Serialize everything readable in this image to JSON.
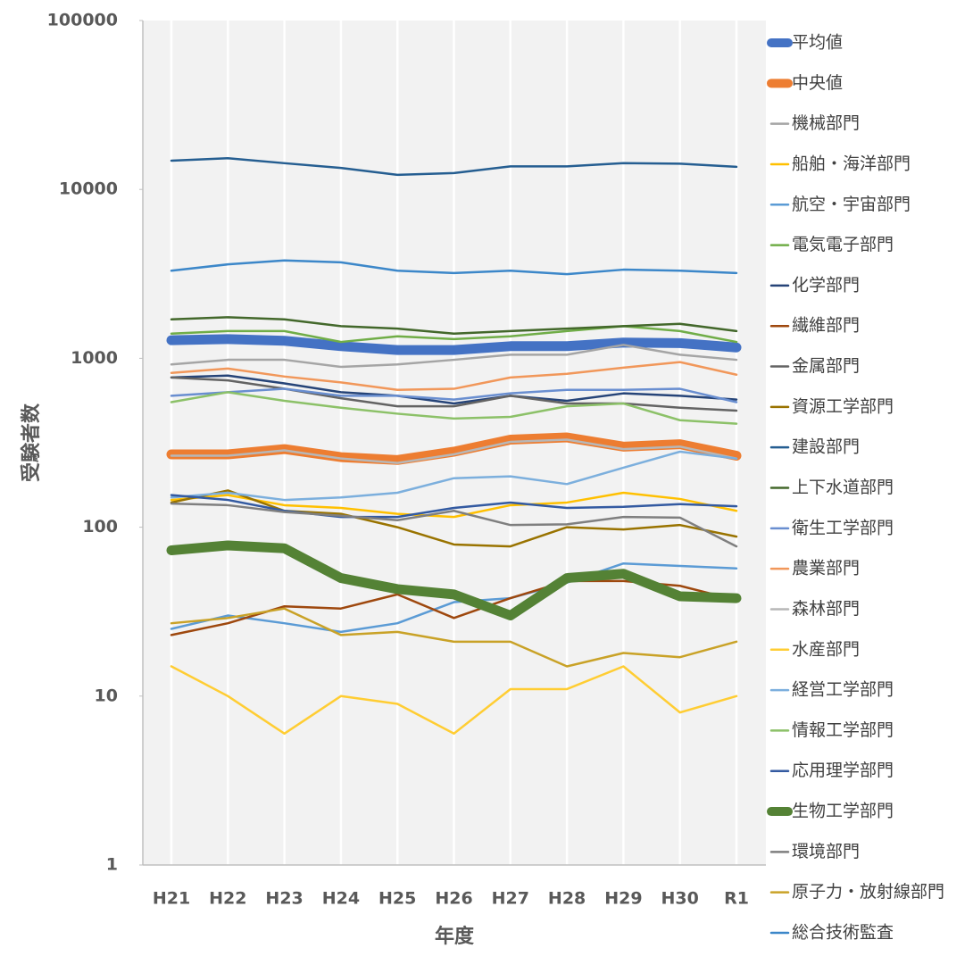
{
  "chart_data": {
    "type": "line",
    "y_label": "受験者数",
    "x_label": "年度",
    "categories": [
      "H21",
      "H22",
      "H23",
      "H24",
      "H25",
      "H26",
      "H27",
      "H28",
      "H29",
      "H30",
      "R1"
    ],
    "ylim": [
      1,
      100000
    ],
    "yticks": [
      1,
      10,
      100,
      1000,
      10000,
      100000
    ],
    "log_scale": true,
    "grid": "x",
    "legend": "right",
    "series": [
      {
        "name": "平均値",
        "color": "#4472c4",
        "line_width": 11,
        "values": [
          1280,
          1300,
          1270,
          1180,
          1120,
          1120,
          1180,
          1180,
          1240,
          1230,
          1160
        ]
      },
      {
        "name": "中央値",
        "color": "#ed7d31",
        "line_width": 11,
        "values": [
          270,
          270,
          290,
          260,
          250,
          280,
          330,
          340,
          300,
          310,
          265
        ]
      },
      {
        "name": "機械部門",
        "color": "#a5a5a5",
        "line_width": 2.5,
        "values": [
          920,
          980,
          980,
          890,
          920,
          980,
          1050,
          1050,
          1200,
          1050,
          980
        ]
      },
      {
        "name": "船舶・海洋部門",
        "color": "#ffc000",
        "line_width": 2.5,
        "values": [
          145,
          155,
          135,
          130,
          120,
          115,
          135,
          140,
          160,
          147,
          125
        ]
      },
      {
        "name": "航空・宇宙部門",
        "color": "#5b9bd5",
        "line_width": 2.5,
        "values": [
          25,
          30,
          27,
          24,
          27,
          36,
          38,
          47,
          61,
          59,
          57
        ]
      },
      {
        "name": "電気電子部門",
        "color": "#70ad47",
        "line_width": 2.5,
        "values": [
          1400,
          1450,
          1450,
          1250,
          1350,
          1300,
          1350,
          1450,
          1550,
          1450,
          1250
        ]
      },
      {
        "name": "化学部門",
        "color": "#264478",
        "line_width": 2.5,
        "values": [
          770,
          790,
          710,
          630,
          600,
          540,
          600,
          560,
          620,
          600,
          570
        ]
      },
      {
        "name": "繊維部門",
        "color": "#9e480e",
        "line_width": 2.5,
        "values": [
          23,
          27,
          34,
          33,
          40,
          29,
          38,
          48,
          48,
          45,
          37
        ]
      },
      {
        "name": "金属部門",
        "color": "#636363",
        "line_width": 2.5,
        "values": [
          770,
          740,
          660,
          580,
          520,
          520,
          600,
          540,
          540,
          510,
          490
        ]
      },
      {
        "name": "資源工学部門",
        "color": "#997300",
        "line_width": 2.5,
        "values": [
          140,
          165,
          125,
          120,
          100,
          79,
          77,
          100,
          97,
          103,
          88
        ]
      },
      {
        "name": "建設部門",
        "color": "#255e91",
        "line_width": 2.5,
        "values": [
          14800,
          15300,
          14300,
          13400,
          12200,
          12500,
          13700,
          13700,
          14300,
          14200,
          13600
        ]
      },
      {
        "name": "上下水道部門",
        "color": "#43682b",
        "line_width": 2.5,
        "values": [
          1700,
          1750,
          1700,
          1550,
          1500,
          1400,
          1450,
          1500,
          1550,
          1600,
          1450
        ]
      },
      {
        "name": "衛生工学部門",
        "color": "#698ed0",
        "line_width": 2.5,
        "values": [
          600,
          630,
          660,
          600,
          600,
          570,
          620,
          650,
          650,
          660,
          550
        ]
      },
      {
        "name": "農業部門",
        "color": "#f1975a",
        "line_width": 2.5,
        "values": [
          820,
          870,
          780,
          720,
          650,
          660,
          770,
          810,
          880,
          950,
          800
        ]
      },
      {
        "name": "森林部門",
        "color": "#b7b7b7",
        "line_width": 2.5,
        "values": [
          265,
          265,
          285,
          255,
          240,
          270,
          320,
          330,
          290,
          300,
          255
        ]
      },
      {
        "name": "水産部門",
        "color": "#ffcd33",
        "line_width": 2.5,
        "values": [
          15,
          10,
          6,
          10,
          9,
          6,
          11,
          11,
          15,
          8,
          10
        ]
      },
      {
        "name": "経営工学部門",
        "color": "#7cafdd",
        "line_width": 2.5,
        "values": [
          150,
          160,
          145,
          150,
          160,
          195,
          200,
          180,
          225,
          280,
          255
        ]
      },
      {
        "name": "情報工学部門",
        "color": "#8cc168",
        "line_width": 2.5,
        "values": [
          550,
          630,
          560,
          510,
          470,
          440,
          450,
          520,
          540,
          430,
          410
        ]
      },
      {
        "name": "応用理学部門",
        "color": "#335aa1",
        "line_width": 2.5,
        "values": [
          155,
          145,
          125,
          115,
          115,
          130,
          140,
          130,
          132,
          137,
          133
        ]
      },
      {
        "name": "生物工学部門",
        "color": "#548235",
        "line_width": 11,
        "values": [
          73,
          78,
          75,
          50,
          43,
          40,
          30,
          50,
          53,
          39,
          38
        ]
      },
      {
        "name": "環境部門",
        "color": "#7f7f7f",
        "line_width": 2.5,
        "values": [
          138,
          135,
          123,
          117,
          110,
          125,
          103,
          104,
          115,
          114,
          77
        ]
      },
      {
        "name": "原子力・放射線部門",
        "color": "#c9a227",
        "line_width": 2.5,
        "values": [
          27,
          29,
          33,
          23,
          24,
          21,
          21,
          15,
          18,
          17,
          21
        ]
      },
      {
        "name": "総合技術監査",
        "color": "#3c87c9",
        "line_width": 2.5,
        "values": [
          3300,
          3600,
          3800,
          3700,
          3300,
          3200,
          3300,
          3150,
          3350,
          3300,
          3200
        ]
      }
    ]
  }
}
